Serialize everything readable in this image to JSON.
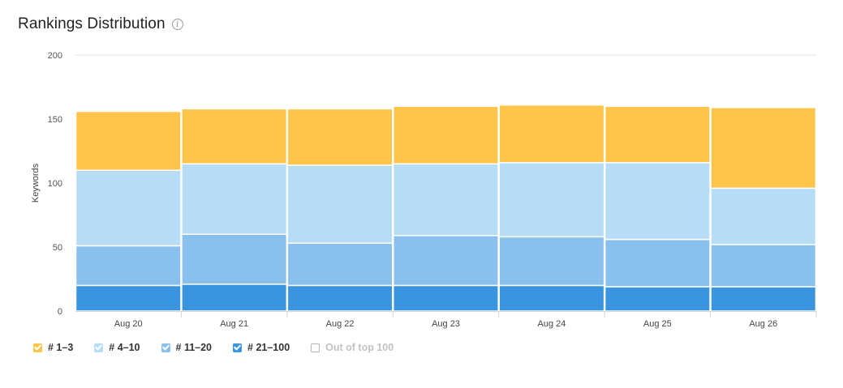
{
  "header": {
    "title": "Rankings Distribution",
    "info_symbol": "i"
  },
  "colors": {
    "top_1_3": "#ffc54a",
    "top_4_10": "#b7dcf5",
    "top_11_20": "#8ac0ed",
    "top_21_100": "#3a95e0",
    "grid": "#e6e6e6",
    "border": "#ffffff"
  },
  "legend": [
    {
      "label": "# 1–3",
      "color": "#ffc54a",
      "checked": true
    },
    {
      "label": "# 4–10",
      "color": "#b7dcf5",
      "checked": true
    },
    {
      "label": "# 11–20",
      "color": "#8ac0ed",
      "checked": true
    },
    {
      "label": "# 21–100",
      "color": "#3a95e0",
      "checked": true
    },
    {
      "label": "Out of top 100",
      "color": "#ffffff",
      "checked": false
    }
  ],
  "chart_data": {
    "type": "bar",
    "stacked": true,
    "title": "Rankings Distribution",
    "ylabel": "Keywords",
    "xlabel": "",
    "ylim": [
      0,
      200
    ],
    "yticks": [
      0,
      50,
      100,
      150,
      200
    ],
    "grid": true,
    "legend_position": "bottom-left",
    "categories": [
      "Aug 20",
      "Aug 21",
      "Aug 22",
      "Aug 23",
      "Aug 24",
      "Aug 25",
      "Aug 26"
    ],
    "series": [
      {
        "name": "# 21–100",
        "color": "#3a95e0",
        "values": [
          20,
          21,
          20,
          20,
          20,
          19,
          19
        ]
      },
      {
        "name": "# 11–20",
        "color": "#8ac0ed",
        "values": [
          31,
          39,
          33,
          39,
          38,
          37,
          33
        ]
      },
      {
        "name": "# 4–10",
        "color": "#b7dcf5",
        "values": [
          59,
          55,
          61,
          56,
          58,
          60,
          44
        ]
      },
      {
        "name": "# 1–3",
        "color": "#ffc54a",
        "values": [
          46,
          43,
          44,
          45,
          45,
          44,
          63
        ]
      }
    ]
  }
}
